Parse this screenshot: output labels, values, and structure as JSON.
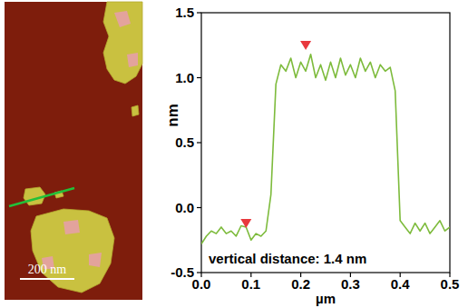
{
  "chart_data": {
    "type": "line",
    "x_label": "µm",
    "y_label": "nm",
    "annotation": "vertical distance: 1.4 nm",
    "xlim": [
      0,
      0.5
    ],
    "xticks": [
      {
        "value": 0,
        "label": "0.0"
      },
      0.1,
      0.2,
      0.3,
      0.4,
      0.5
    ],
    "ylim": [
      -0.5,
      1.5
    ],
    "yticks": [
      -0.5,
      {
        "value": 0,
        "label": "0.0"
      },
      0.5,
      {
        "value": 1,
        "label": "1.0"
      },
      1.5
    ],
    "grid": false,
    "series": [
      {
        "type": "line",
        "color": "#7dbb3c",
        "x": [
          0,
          0.01,
          0.02,
          0.03,
          0.04,
          0.05,
          0.06,
          0.07,
          0.08,
          0.09,
          0.1,
          0.11,
          0.12,
          0.13,
          0.14,
          0.15,
          0.16,
          0.17,
          0.18,
          0.19,
          0.2,
          0.21,
          0.22,
          0.23,
          0.24,
          0.25,
          0.26,
          0.27,
          0.28,
          0.29,
          0.3,
          0.31,
          0.32,
          0.33,
          0.34,
          0.35,
          0.36,
          0.37,
          0.38,
          0.39,
          0.4,
          0.41,
          0.42,
          0.43,
          0.44,
          0.45,
          0.46,
          0.47,
          0.48,
          0.49,
          0.5
        ],
        "values": [
          -0.28,
          -0.22,
          -0.18,
          -0.2,
          -0.15,
          -0.2,
          -0.18,
          -0.22,
          -0.14,
          -0.15,
          -0.25,
          -0.2,
          -0.22,
          -0.18,
          0.1,
          0.95,
          1.1,
          1.05,
          1.15,
          1.0,
          1.12,
          1.05,
          1.18,
          1.0,
          1.1,
          0.98,
          1.12,
          1.0,
          1.15,
          1.02,
          1.1,
          1.0,
          1.15,
          1.05,
          1.12,
          1.0,
          1.1,
          1.05,
          1.08,
          0.9,
          -0.1,
          -0.15,
          -0.2,
          -0.12,
          -0.18,
          -0.12,
          -0.2,
          -0.15,
          -0.1,
          -0.18,
          -0.15
        ]
      },
      {
        "type": "scatter",
        "color": "#e8383d",
        "marker": "triangle-down",
        "x": [
          0.09,
          0.21
        ],
        "values": [
          -0.15,
          1.22
        ]
      }
    ]
  },
  "image": {
    "scale_bar": "200 nm"
  }
}
